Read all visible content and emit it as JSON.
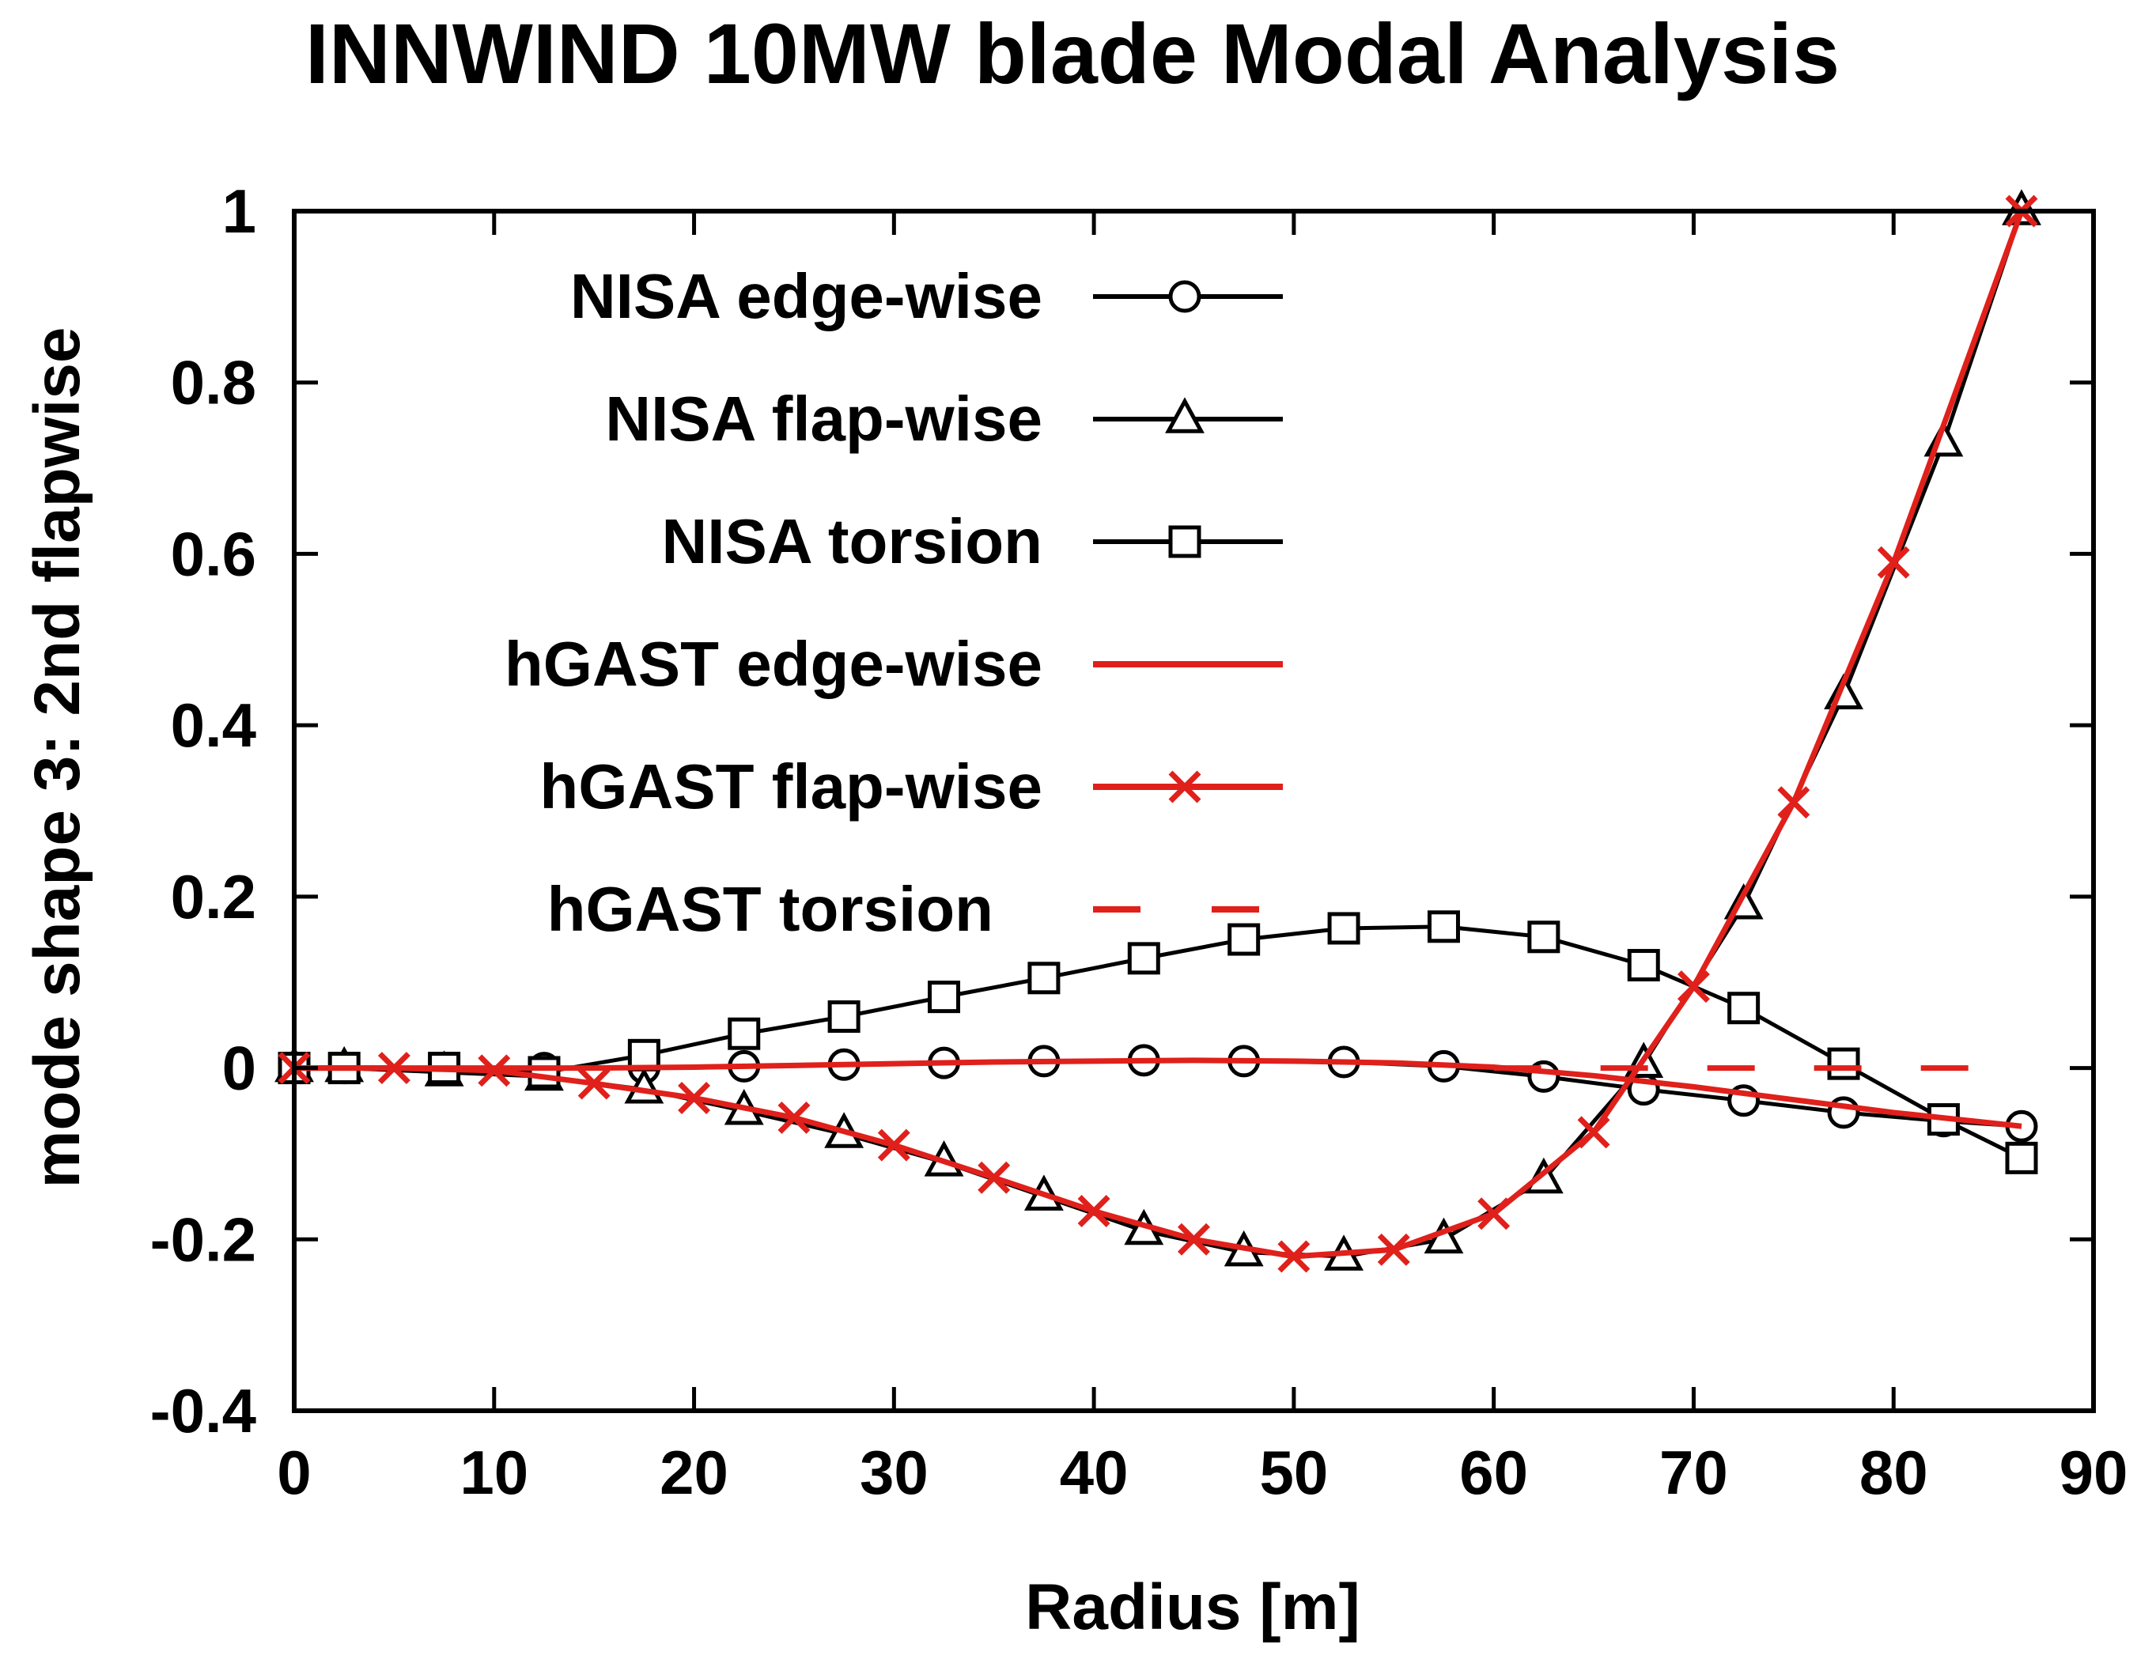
{
  "chart_data": {
    "type": "line",
    "title": "INNWIND 10MW blade Modal Analysis",
    "xlabel": "Radius [m]",
    "ylabel": "mode shape 3: 2nd flapwise",
    "xlim": [
      0,
      90
    ],
    "ylim": [
      -0.4,
      1
    ],
    "xticks": [
      "0",
      "10",
      "20",
      "30",
      "40",
      "50",
      "60",
      "70",
      "80",
      "90"
    ],
    "yticks": [
      "-0.4",
      "-0.2",
      "0",
      "0.2",
      "0.4",
      "0.6",
      "0.8",
      "1"
    ],
    "grid": false,
    "legend_position": "top-left",
    "colors": {
      "nisa": "#000000",
      "hgast": "#e0201b"
    },
    "series": [
      {
        "name": "NISA edge-wise",
        "color": "#000000",
        "marker": "circle",
        "line": "solid",
        "x": [
          0,
          2.5,
          7.5,
          12.5,
          17.5,
          22.5,
          27.5,
          32.5,
          37.5,
          42.5,
          47.5,
          52.5,
          57.5,
          62.5,
          67.5,
          72.5,
          77.5,
          82.5,
          86.4
        ],
        "y": [
          0,
          0,
          0,
          0,
          0,
          0.002,
          0.004,
          0.006,
          0.008,
          0.009,
          0.008,
          0.007,
          0.002,
          -0.01,
          -0.025,
          -0.038,
          -0.052,
          -0.062,
          -0.068
        ]
      },
      {
        "name": "NISA flap-wise",
        "color": "#000000",
        "marker": "triangle",
        "line": "solid",
        "x": [
          0,
          2.5,
          7.5,
          12.5,
          17.5,
          22.5,
          27.5,
          32.5,
          37.5,
          42.5,
          47.5,
          52.5,
          57.5,
          62.5,
          67.5,
          72.5,
          77.5,
          82.5,
          86.4
        ],
        "y": [
          0,
          0,
          -0.005,
          -0.01,
          -0.025,
          -0.05,
          -0.077,
          -0.11,
          -0.15,
          -0.19,
          -0.215,
          -0.22,
          -0.2,
          -0.13,
          0.005,
          0.19,
          0.435,
          0.73,
          1
        ]
      },
      {
        "name": "NISA torsion",
        "color": "#000000",
        "marker": "square",
        "line": "solid",
        "x": [
          0,
          2.5,
          7.5,
          12.5,
          17.5,
          22.5,
          27.5,
          32.5,
          37.5,
          42.5,
          47.5,
          52.5,
          57.5,
          62.5,
          67.5,
          72.5,
          77.5,
          82.5,
          86.4
        ],
        "y": [
          0,
          0,
          0,
          -0.005,
          0.015,
          0.04,
          0.06,
          0.083,
          0.105,
          0.128,
          0.15,
          0.163,
          0.165,
          0.153,
          0.12,
          0.07,
          0.005,
          -0.06,
          -0.105
        ]
      },
      {
        "name": "hGAST edge-wise",
        "color": "#e0201b",
        "marker": "none",
        "line": "solid",
        "x": [
          0,
          5,
          10,
          15,
          20,
          25,
          30,
          35,
          40,
          45,
          50,
          55,
          60,
          65,
          70,
          75,
          80,
          86.4
        ],
        "y": [
          0,
          0,
          0,
          0,
          0.001,
          0.003,
          0.005,
          0.007,
          0.008,
          0.009,
          0.008,
          0.006,
          0.001,
          -0.009,
          -0.022,
          -0.037,
          -0.052,
          -0.068
        ]
      },
      {
        "name": "hGAST flap-wise",
        "color": "#e0201b",
        "marker": "cross",
        "line": "solid",
        "x": [
          0,
          5,
          10,
          15,
          20,
          25,
          30,
          35,
          40,
          45,
          50,
          55,
          60,
          65,
          70,
          75,
          80,
          86.4
        ],
        "y": [
          0,
          0,
          -0.003,
          -0.018,
          -0.035,
          -0.058,
          -0.09,
          -0.128,
          -0.167,
          -0.2,
          -0.22,
          -0.212,
          -0.17,
          -0.075,
          0.095,
          0.31,
          0.59,
          1
        ]
      },
      {
        "name": "hGAST torsion",
        "color": "#e0201b",
        "marker": "none",
        "line": "dashed",
        "x": [
          60,
          86.4
        ],
        "y": [
          0,
          0
        ]
      }
    ]
  }
}
